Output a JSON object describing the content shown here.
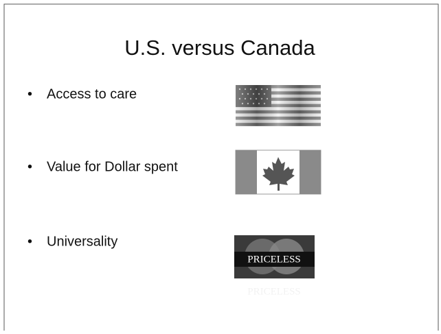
{
  "slide": {
    "title": "U.S. versus Canada",
    "bullets": [
      "Access to care",
      "Value for Dollar spent",
      "Universality"
    ],
    "card_text": "PRICELESS"
  }
}
